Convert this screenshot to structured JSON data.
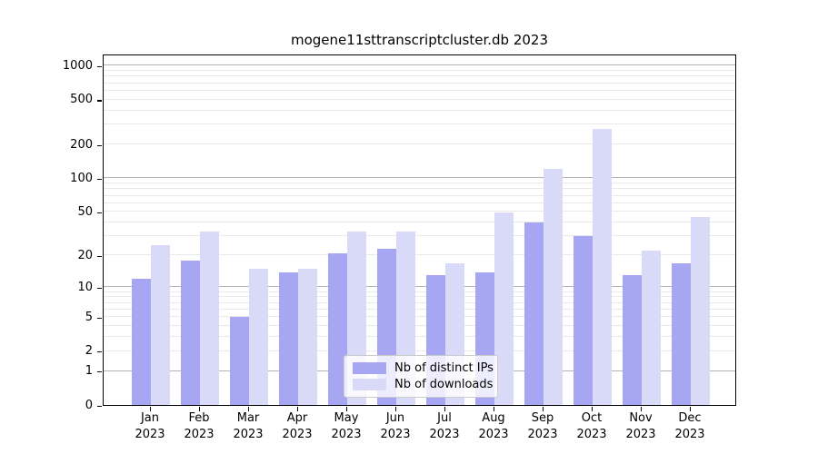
{
  "title": "mogene11sttranscriptcluster.db 2023",
  "chart_data": {
    "type": "bar",
    "title": "mogene11sttranscriptcluster.db 2023",
    "categories": [
      "Jan",
      "Feb",
      "Mar",
      "Apr",
      "May",
      "Jun",
      "Jul",
      "Aug",
      "Sep",
      "Oct",
      "Nov",
      "Dec"
    ],
    "x_year_label": "2023",
    "series": [
      {
        "name": "Nb of distinct IPs",
        "color": "#a6a6f2",
        "values": [
          12,
          18,
          5,
          14,
          21,
          23,
          13,
          14,
          40,
          30,
          13,
          17
        ]
      },
      {
        "name": "Nb of downloads",
        "color": "#d9d9f8",
        "values": [
          25,
          33,
          15,
          15,
          33,
          33,
          17,
          49,
          122,
          275,
          22,
          45
        ]
      }
    ],
    "yscale": "log1p",
    "ylim": [
      0,
      1000
    ],
    "yticks": [
      0,
      1,
      2,
      5,
      10,
      20,
      50,
      100,
      200,
      500,
      1000
    ],
    "grid": true,
    "gridline_major_color": "#b3b3b3",
    "gridline_minor_color": "#e9e9e9",
    "legend_position": "bottom-center",
    "xlabel": "",
    "ylabel": ""
  }
}
